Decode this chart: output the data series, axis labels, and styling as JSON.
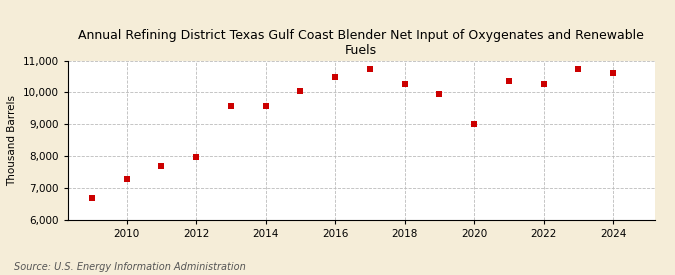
{
  "title": "Annual Refining District Texas Gulf Coast Blender Net Input of Oxygenates and Renewable\nFuels",
  "ylabel": "Thousand Barrels",
  "source": "Source: U.S. Energy Information Administration",
  "years": [
    2009,
    2010,
    2011,
    2012,
    2013,
    2014,
    2015,
    2016,
    2017,
    2018,
    2019,
    2020,
    2021,
    2022,
    2023,
    2024
  ],
  "values": [
    6680,
    7290,
    7680,
    7990,
    9570,
    9570,
    10040,
    10490,
    10730,
    10270,
    9960,
    9010,
    10360,
    10270,
    10730,
    10620
  ],
  "ylim": [
    6000,
    11000
  ],
  "yticks": [
    6000,
    7000,
    8000,
    9000,
    10000,
    11000
  ],
  "xticks": [
    2010,
    2012,
    2014,
    2016,
    2018,
    2020,
    2022,
    2024
  ],
  "xlim": [
    2008.3,
    2025.2
  ],
  "marker_color": "#cc0000",
  "bg_color": "#f5edd8",
  "plot_bg_color": "#ffffff",
  "grid_color": "#bbbbbb",
  "title_fontsize": 9,
  "label_fontsize": 7.5,
  "tick_fontsize": 7.5,
  "source_fontsize": 7
}
